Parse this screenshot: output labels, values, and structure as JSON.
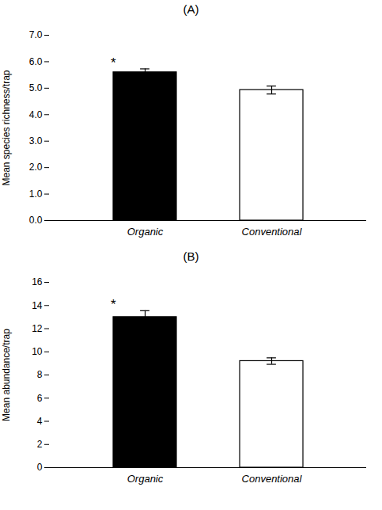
{
  "chart_data": [
    {
      "type": "bar",
      "title": "(A)",
      "categories": [
        "Organic",
        "Conventional"
      ],
      "values": [
        5.6,
        4.93
      ],
      "errors": [
        0.13,
        0.15
      ],
      "colors": [
        "#000000",
        "#ffffff"
      ],
      "ylabel": "Mean species richness/trap",
      "ylim": [
        0,
        7
      ],
      "yticks": [
        0,
        1,
        2,
        3,
        4,
        5,
        6,
        7
      ],
      "grid": false,
      "annotations": [
        {
          "text": "*",
          "category": "Organic"
        }
      ]
    },
    {
      "type": "bar",
      "title": "(B)",
      "categories": [
        "Organic",
        "Conventional"
      ],
      "values": [
        13.0,
        9.2
      ],
      "errors": [
        0.55,
        0.28
      ],
      "colors": [
        "#000000",
        "#ffffff"
      ],
      "ylabel": "Mean abundance/trap",
      "ylim": [
        0,
        16
      ],
      "yticks": [
        0,
        2,
        4,
        6,
        8,
        10,
        12,
        14,
        16
      ],
      "grid": false,
      "annotations": [
        {
          "text": "*",
          "category": "Organic"
        }
      ]
    }
  ]
}
